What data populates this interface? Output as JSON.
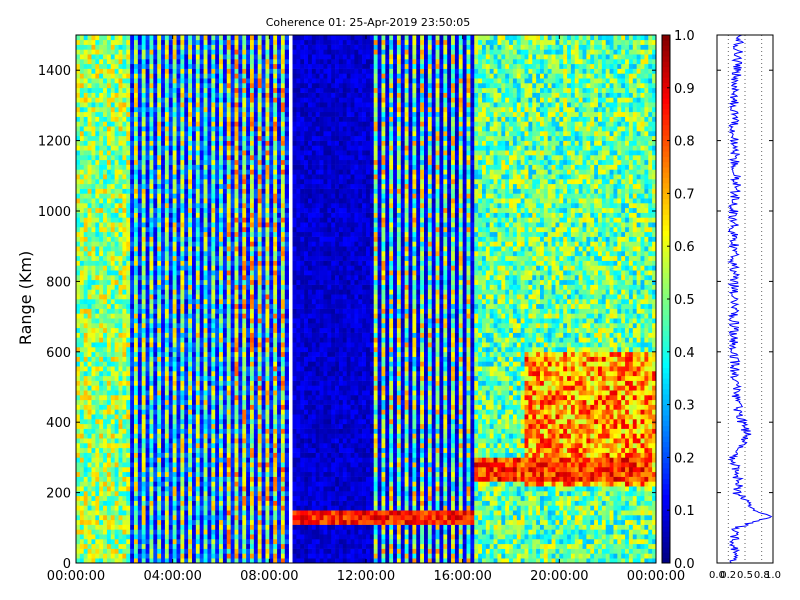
{
  "chart_data": [
    {
      "type": "heatmap",
      "title": "Coherence 01: 25-Apr-2019 23:50:05",
      "xlabel": "",
      "ylabel": "Range (Km)",
      "x_ticks": [
        "00:00:00",
        "04:00:00",
        "08:00:00",
        "12:00:00",
        "16:00:00",
        "20:00:00",
        "00:00:00"
      ],
      "x_hours": [
        0,
        4,
        8,
        12,
        16,
        20,
        24
      ],
      "xlim_hours": [
        0,
        24
      ],
      "y_ticks": [
        0,
        200,
        400,
        600,
        800,
        1000,
        1200,
        1400
      ],
      "ylim": [
        0,
        1500
      ],
      "colormap": "jet",
      "gaps_hours": [
        [
          8.75,
          9.0
        ],
        [
          12.25,
          12.4
        ]
      ],
      "colorbar": {
        "ticks": [
          "0.0",
          "0.1",
          "0.2",
          "0.3",
          "0.4",
          "0.5",
          "0.6",
          "0.7",
          "0.8",
          "0.9",
          "1.0"
        ],
        "range": [
          0.0,
          1.0
        ]
      },
      "features": [
        {
          "name": "low-coherence block",
          "x_hours": [
            9.0,
            12.25
          ],
          "value": 0.05
        },
        {
          "name": "strong echo layer",
          "x_hours": [
            9.0,
            16.5
          ],
          "range_km": [
            115,
            150
          ],
          "value": 0.85
        },
        {
          "name": "rising layer",
          "x_hours": [
            16.5,
            23.8
          ],
          "range_km": [
            230,
            300
          ],
          "value": 0.8
        },
        {
          "name": "high-coherence region",
          "x_hours": [
            18.5,
            23.8
          ],
          "range_km": [
            220,
            600
          ],
          "value": 0.7
        }
      ]
    },
    {
      "type": "line",
      "title": "",
      "xlabel": "",
      "ylabel": "",
      "x_ticks": [
        "0.0",
        "0.2",
        "0.5",
        "0.8",
        "1.0"
      ],
      "xlim": [
        0,
        1
      ],
      "ylim": [
        0,
        1500
      ],
      "color": "#0000ff",
      "profile_km": [
        0,
        50,
        100,
        130,
        150,
        200,
        220,
        250,
        300,
        330,
        360,
        400,
        450,
        500,
        600,
        700,
        800,
        900,
        1000,
        1100,
        1200,
        1300,
        1400,
        1500
      ],
      "profile_value": [
        0.3,
        0.3,
        0.35,
        0.95,
        0.7,
        0.35,
        0.4,
        0.35,
        0.3,
        0.4,
        0.55,
        0.45,
        0.35,
        0.35,
        0.3,
        0.3,
        0.3,
        0.3,
        0.3,
        0.35,
        0.3,
        0.3,
        0.35,
        0.4
      ]
    }
  ]
}
